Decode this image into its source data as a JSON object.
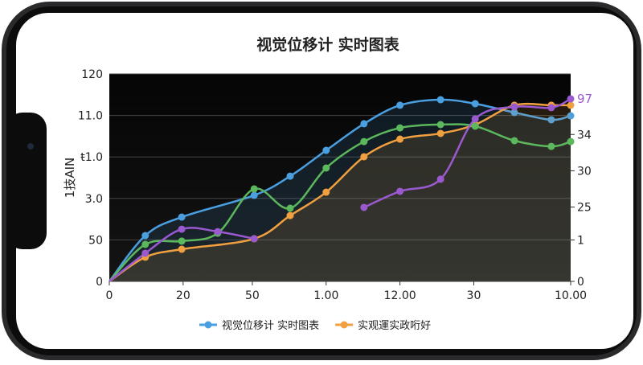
{
  "chart_data": {
    "type": "line",
    "title": "视觉位移计 实时图表",
    "y_label": "1技AIN",
    "xlim": [
      0,
      100
    ],
    "xticks": [
      0,
      {
        "value": 16,
        "label": "20"
      },
      {
        "value": 31,
        "label": "50"
      },
      {
        "value": 47,
        "label": "1.00"
      },
      {
        "value": 63,
        "label": "12.00"
      },
      {
        "value": 79,
        "label": "30"
      },
      {
        "value": 100,
        "label": "10.00"
      }
    ],
    "ylim": [
      0,
      120
    ],
    "yticks": [
      0,
      {
        "value": 24,
        "label": "50"
      },
      {
        "value": 48,
        "label": "3.0"
      },
      {
        "value": 72,
        "label": "ŧ1.0"
      },
      {
        "value": 96,
        "label": "11.0"
      },
      120
    ],
    "y2lim": [
      0,
      120
    ],
    "y2ticks": [
      0,
      {
        "value": 24,
        "label": "1"
      },
      {
        "value": 43,
        "label": "25"
      },
      {
        "value": 64,
        "label": "30"
      },
      {
        "value": 85,
        "label": "34"
      }
    ],
    "annotation": "97",
    "grid": true,
    "legend": "bottom",
    "series": [
      {
        "name": "视觉位移计 实时图表",
        "color": "#4a9fe0",
        "fill": true,
        "x": [
          0,
          7.8,
          15.7,
          31.4,
          39.2,
          47,
          55.2,
          63,
          71.8,
          79.3,
          87.8,
          95.8,
          100
        ],
        "values": [
          0,
          26.5,
          37.2,
          49.8,
          60.9,
          75.8,
          91.2,
          101.9,
          105.1,
          102.8,
          97.7,
          93.5,
          95.8
        ]
      },
      {
        "name": "实观運实政哘好",
        "color": "#f0a040",
        "fill": true,
        "x": [
          0,
          7.8,
          15.7,
          31.4,
          39.2,
          47,
          55.2,
          63,
          71.8,
          79.3,
          87.8,
          95.8,
          100
        ],
        "values": [
          0,
          14,
          18.6,
          24.7,
          38.1,
          51.6,
          72.1,
          82.3,
          85.6,
          90.7,
          101.9,
          101.9,
          101.9
        ]
      },
      {
        "color": "#5cb85c",
        "x": [
          0,
          7.8,
          15.7,
          23.5,
          31.4,
          39.2,
          47,
          55.2,
          63,
          71.8,
          79.3,
          87.8,
          95.8,
          100
        ],
        "values": [
          0,
          21.4,
          23.3,
          27.9,
          53.5,
          42.3,
          65.6,
          80.9,
          88.8,
          90.7,
          89.8,
          81.4,
          78.1,
          80.9
        ]
      },
      {
        "color": "#9b59d0",
        "x": [
          0,
          7.8,
          15.7,
          23.5,
          31.4,
          39.2,
          55.2,
          63,
          71.8,
          79.3,
          87.8,
          95.8,
          100
        ],
        "values": [
          0,
          16.3,
          30.2,
          28.8,
          24.7,
          null,
          42.8,
          52.1,
          59.1,
          94,
          101,
          100.5,
          105.6
        ]
      }
    ]
  }
}
